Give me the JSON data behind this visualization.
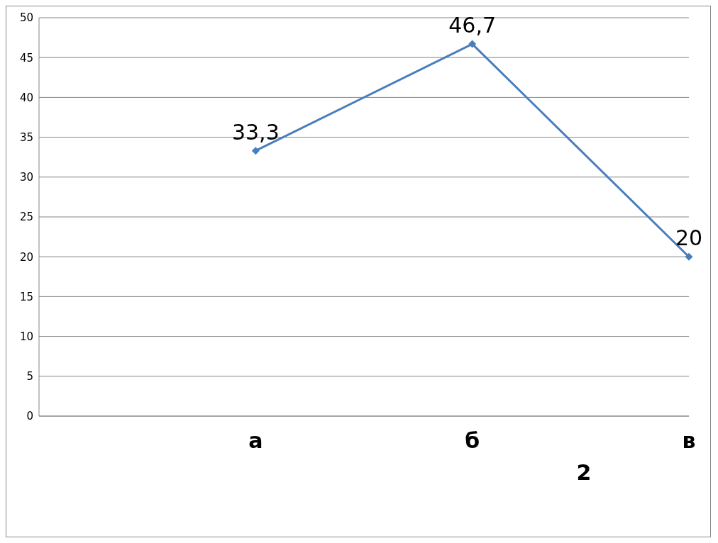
{
  "chart_data": {
    "type": "line",
    "xlabel": "2",
    "categories": [
      null,
      "а",
      "б",
      "в"
    ],
    "series": [
      {
        "color": "#4a7ebb",
        "values": [
          null,
          33.3,
          46.7,
          20
        ],
        "value_labels": [
          null,
          "33,3",
          "46,7",
          "20"
        ]
      }
    ],
    "ylim": [
      0,
      50
    ],
    "yticks": [
      0,
      5,
      10,
      15,
      20,
      25,
      30,
      35,
      40,
      45,
      50
    ],
    "grid": "y",
    "legend": false,
    "marker": "diamond",
    "line_style": "solid"
  }
}
